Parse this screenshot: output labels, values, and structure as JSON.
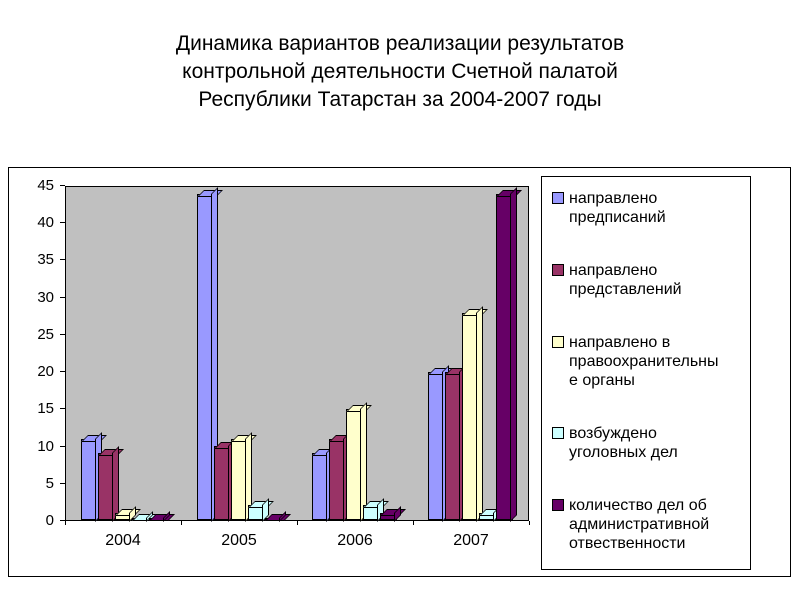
{
  "title_lines": [
    "Динамика вариантов реализации результатов",
    "контрольной деятельности Счетной палатой",
    "Республики Татарстан за 2004-2007 годы"
  ],
  "chart_data": {
    "type": "bar",
    "title": "Динамика вариантов реализации результатов контрольной деятельности Счетной палатой Республики Татарстан за 2004-2007 годы",
    "categories": [
      "2004",
      "2005",
      "2006",
      "2007"
    ],
    "series": [
      {
        "name": "направлено предписаний",
        "color": "#9999FF",
        "values": [
          11,
          44,
          9,
          20
        ]
      },
      {
        "name": "направлено представлений",
        "color": "#993366",
        "values": [
          9,
          10,
          11,
          20
        ]
      },
      {
        "name": "направлено в правоохранительные органы",
        "color": "#FFFFCC",
        "values": [
          1,
          11,
          15,
          28
        ]
      },
      {
        "name": "возбуждено уголовных дел",
        "color": "#CCFFFF",
        "values": [
          0,
          2,
          2,
          1
        ]
      },
      {
        "name": "количество дел об административной отвественности",
        "color": "#660066",
        "values": [
          0,
          0,
          1,
          44
        ]
      }
    ],
    "xlabel": "",
    "ylabel": "",
    "ylim": [
      0,
      45
    ],
    "yticks": [
      0,
      5,
      10,
      15,
      20,
      25,
      30,
      35,
      40,
      45
    ],
    "grid": false,
    "legend_position": "right",
    "plot_bg_color": "#C0C0C0",
    "bar_style": "3d"
  }
}
